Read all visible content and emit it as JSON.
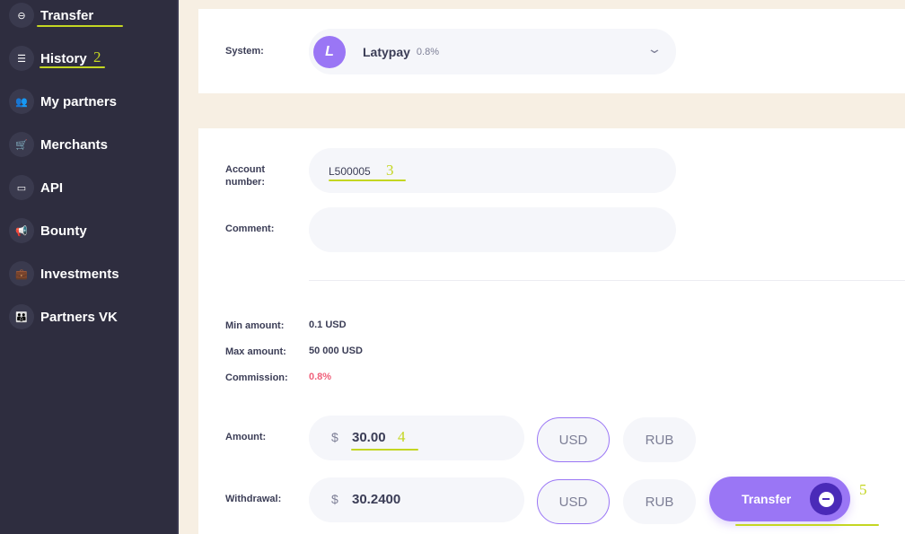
{
  "sidebar": {
    "items": [
      {
        "label": "Transfer",
        "icon": "minus-circle-icon",
        "glyph": "⊖"
      },
      {
        "label": "History",
        "icon": "list-icon",
        "glyph": "☰"
      },
      {
        "label": "My partners",
        "icon": "users-icon",
        "glyph": "👥"
      },
      {
        "label": "Merchants",
        "icon": "cart-icon",
        "glyph": "🛒"
      },
      {
        "label": "API",
        "icon": "card-icon",
        "glyph": "▭"
      },
      {
        "label": "Bounty",
        "icon": "megaphone-icon",
        "glyph": "📢"
      },
      {
        "label": "Investments",
        "icon": "briefcase-icon",
        "glyph": "💼"
      },
      {
        "label": "Partners VK",
        "icon": "people-icon",
        "glyph": "👪"
      }
    ]
  },
  "annotations": {
    "n2": "2",
    "n3": "3",
    "n4": "4",
    "n5": "5"
  },
  "system": {
    "label": "System:",
    "name": "Latypay",
    "fee": "0.8%",
    "logo_letter": "L"
  },
  "form": {
    "account_label": "Account number:",
    "account_value": "L500005",
    "comment_label": "Comment:",
    "comment_value": "",
    "min_label": "Min amount:",
    "min_value": "0.1 USD",
    "max_label": "Max amount:",
    "max_value": "50 000 USD",
    "commission_label": "Commission:",
    "commission_value": "0.8%",
    "amount_label": "Amount:",
    "amount_currency_sign": "$",
    "amount_value": "30.00",
    "withdrawal_label": "Withdrawal:",
    "withdrawal_currency_sign": "$",
    "withdrawal_value": "30.2400",
    "currencies": [
      "USD",
      "RUB"
    ],
    "selected_currency": "USD"
  },
  "transfer_button": "Transfer",
  "colors": {
    "accent": "#9a76f5",
    "sidebar": "#2e2d3f",
    "annotation": "#c4d622",
    "commission": "#f0607a"
  }
}
